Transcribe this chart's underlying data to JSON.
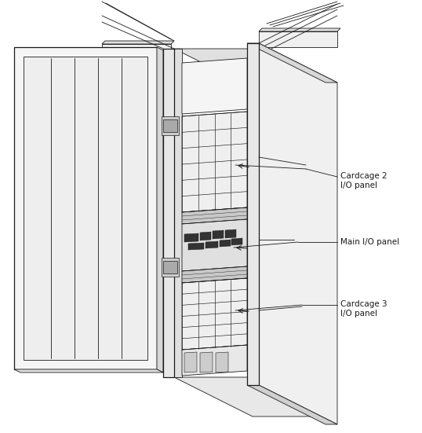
{
  "bg_color": "#ffffff",
  "line_color": "#1a1a1a",
  "labels": {
    "cardcage2": "Cardcage 2\nI/O panel",
    "main": "Main I/O panel",
    "cardcage3": "Cardcage 3\nI/O panel"
  },
  "figsize": [
    5.38,
    5.51
  ],
  "dpi": 100
}
